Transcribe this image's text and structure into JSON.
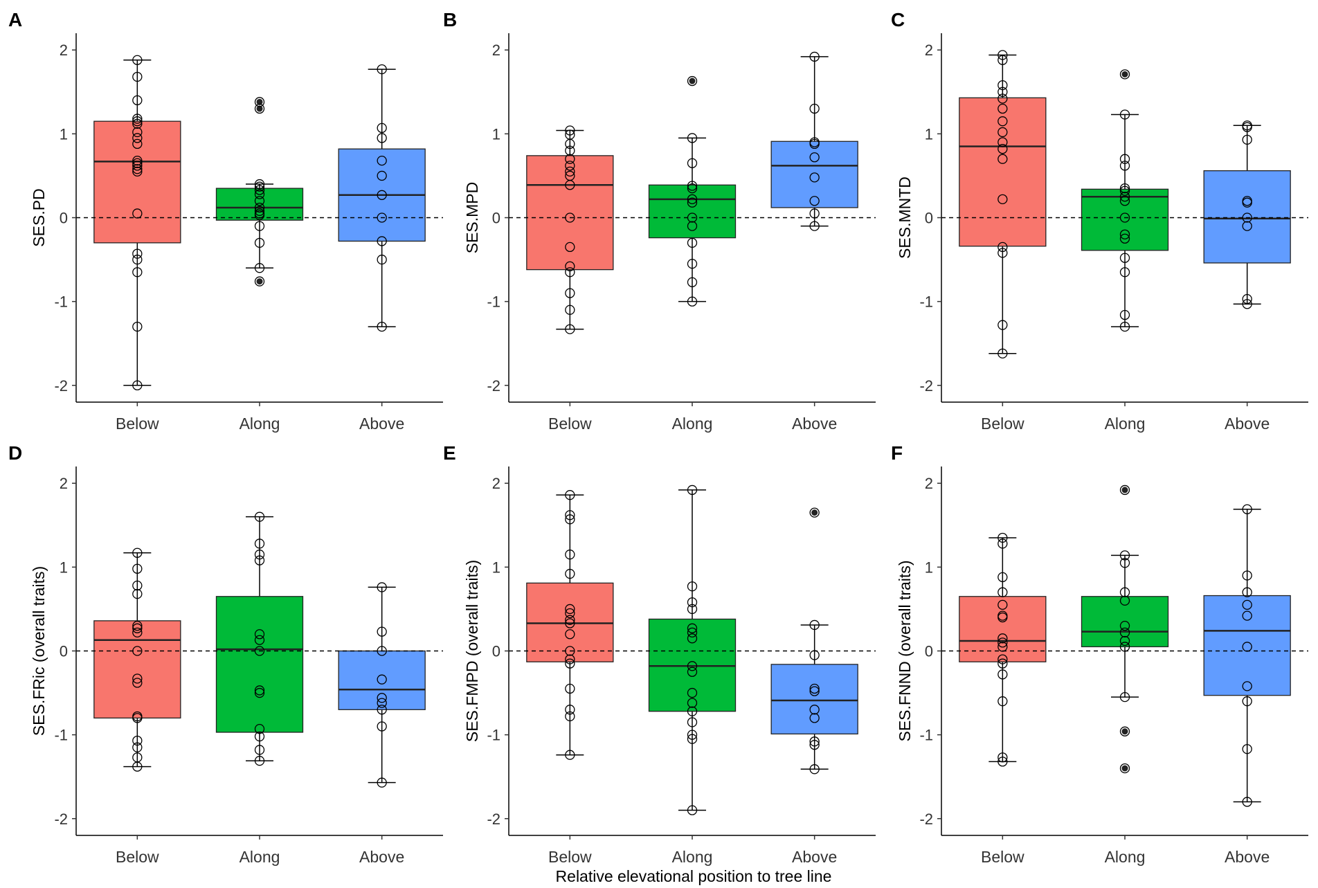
{
  "figure": {
    "xlabel": "Relative elevational position to tree line"
  },
  "colors": {
    "Below": "#F8766D",
    "Along": "#00BA38",
    "Above": "#619CFF"
  },
  "chart_data": [
    {
      "type": "boxplot",
      "panel": "A",
      "ylabel": "SES.PD",
      "ylim": [
        -2.2,
        2.2
      ],
      "yticks": [
        -2,
        -1,
        0,
        1,
        2
      ],
      "reference_line": 0,
      "categories": [
        "Below",
        "Along",
        "Above"
      ],
      "boxes": [
        {
          "category": "Below",
          "whisker_low": -2.0,
          "q1": -0.3,
          "median": 0.67,
          "q3": 1.15,
          "whisker_high": 1.88,
          "points": [
            1.88,
            1.68,
            1.4,
            1.18,
            1.15,
            1.12,
            1.02,
            0.95,
            0.88,
            0.68,
            0.65,
            0.62,
            0.58,
            0.55,
            0.05,
            -0.43,
            -0.5,
            -0.65,
            -1.3,
            -2.0
          ],
          "outliers": []
        },
        {
          "category": "Along",
          "whisker_low": -0.6,
          "q1": -0.03,
          "median": 0.12,
          "q3": 0.35,
          "whisker_high": 0.4,
          "points": [
            0.4,
            0.37,
            0.33,
            0.28,
            0.2,
            0.12,
            0.08,
            0.05,
            0.03,
            -0.1,
            -0.3,
            -0.6
          ],
          "outliers": [
            1.38,
            1.3,
            -0.76
          ]
        },
        {
          "category": "Above",
          "whisker_low": -1.3,
          "q1": -0.28,
          "median": 0.27,
          "q3": 0.82,
          "whisker_high": 1.77,
          "points": [
            1.77,
            1.07,
            0.95,
            0.68,
            0.5,
            0.27,
            0.0,
            -0.28,
            -0.5,
            -1.3
          ],
          "outliers": []
        }
      ]
    },
    {
      "type": "boxplot",
      "panel": "B",
      "ylabel": "SES.MPD",
      "ylim": [
        -2.2,
        2.2
      ],
      "yticks": [
        -2,
        -1,
        0,
        1,
        2
      ],
      "reference_line": 0,
      "categories": [
        "Below",
        "Along",
        "Above"
      ],
      "boxes": [
        {
          "category": "Below",
          "whisker_low": -1.33,
          "q1": -0.62,
          "median": 0.39,
          "q3": 0.74,
          "whisker_high": 1.04,
          "points": [
            1.04,
            0.99,
            0.88,
            0.8,
            0.7,
            0.62,
            0.55,
            0.5,
            0.39,
            0.0,
            -0.35,
            -0.58,
            -0.65,
            -0.9,
            -1.1,
            -1.33
          ],
          "outliers": []
        },
        {
          "category": "Along",
          "whisker_low": -1.0,
          "q1": -0.24,
          "median": 0.22,
          "q3": 0.39,
          "whisker_high": 0.95,
          "points": [
            0.95,
            0.65,
            0.38,
            0.35,
            0.22,
            0.18,
            0.0,
            -0.1,
            -0.3,
            -0.55,
            -0.77,
            -1.0
          ],
          "outliers": [
            1.63
          ]
        },
        {
          "category": "Above",
          "whisker_low": -0.1,
          "q1": 0.12,
          "median": 0.62,
          "q3": 0.91,
          "whisker_high": 1.92,
          "points": [
            1.92,
            1.3,
            0.9,
            0.88,
            0.72,
            0.48,
            0.2,
            0.05,
            -0.1
          ],
          "outliers": []
        }
      ]
    },
    {
      "type": "boxplot",
      "panel": "C",
      "ylabel": "SES.MNTD",
      "ylim": [
        -2.2,
        2.2
      ],
      "yticks": [
        -2,
        -1,
        0,
        1,
        2
      ],
      "reference_line": 0,
      "categories": [
        "Below",
        "Along",
        "Above"
      ],
      "boxes": [
        {
          "category": "Below",
          "whisker_low": -1.62,
          "q1": -0.34,
          "median": 0.85,
          "q3": 1.43,
          "whisker_high": 1.94,
          "points": [
            1.94,
            1.88,
            1.58,
            1.5,
            1.42,
            1.3,
            1.15,
            1.02,
            0.9,
            0.82,
            0.7,
            0.22,
            -0.35,
            -0.42,
            -1.28,
            -1.62
          ],
          "outliers": []
        },
        {
          "category": "Along",
          "whisker_low": -1.3,
          "q1": -0.39,
          "median": 0.25,
          "q3": 0.34,
          "whisker_high": 1.23,
          "points": [
            1.23,
            0.7,
            0.62,
            0.35,
            0.32,
            0.25,
            0.2,
            0.0,
            -0.2,
            -0.25,
            -0.48,
            -0.65,
            -1.16,
            -1.3
          ],
          "outliers": [
            1.71
          ]
        },
        {
          "category": "Above",
          "whisker_low": -1.03,
          "q1": -0.54,
          "median": -0.01,
          "q3": 0.56,
          "whisker_high": 1.1,
          "points": [
            1.1,
            1.08,
            0.93,
            0.2,
            0.18,
            0.0,
            -0.1,
            -0.97,
            -1.03
          ],
          "outliers": []
        }
      ]
    },
    {
      "type": "boxplot",
      "panel": "D",
      "ylabel": "SES.FRic (overall traits)",
      "ylim": [
        -2.2,
        2.2
      ],
      "yticks": [
        -2,
        -1,
        0,
        1,
        2
      ],
      "reference_line": 0,
      "categories": [
        "Below",
        "Along",
        "Above"
      ],
      "boxes": [
        {
          "category": "Below",
          "whisker_low": -1.38,
          "q1": -0.8,
          "median": 0.13,
          "q3": 0.36,
          "whisker_high": 1.17,
          "points": [
            1.17,
            0.98,
            0.78,
            0.68,
            0.3,
            0.27,
            0.22,
            0.0,
            -0.33,
            -0.38,
            -0.78,
            -0.8,
            -1.07,
            -1.15,
            -1.27,
            -1.38
          ],
          "outliers": []
        },
        {
          "category": "Along",
          "whisker_low": -1.31,
          "q1": -0.97,
          "median": 0.02,
          "q3": 0.65,
          "whisker_high": 1.6,
          "points": [
            1.6,
            1.28,
            1.15,
            1.08,
            0.2,
            0.13,
            0.0,
            -0.47,
            -0.5,
            -0.93,
            -1.02,
            -1.18,
            -1.31
          ],
          "outliers": []
        },
        {
          "category": "Above",
          "whisker_low": -1.57,
          "q1": -0.7,
          "median": -0.46,
          "q3": 0.0,
          "whisker_high": 0.76,
          "points": [
            0.76,
            0.23,
            0.0,
            -0.34,
            -0.56,
            -0.62,
            -0.7,
            -0.9,
            -1.57
          ],
          "outliers": []
        }
      ]
    },
    {
      "type": "boxplot",
      "panel": "E",
      "ylabel": "SES.FMPD (overall traits)",
      "ylim": [
        -2.2,
        2.2
      ],
      "yticks": [
        -2,
        -1,
        0,
        1,
        2
      ],
      "reference_line": 0,
      "categories": [
        "Below",
        "Along",
        "Above"
      ],
      "boxes": [
        {
          "category": "Below",
          "whisker_low": -1.24,
          "q1": -0.13,
          "median": 0.33,
          "q3": 0.81,
          "whisker_high": 1.86,
          "points": [
            1.86,
            1.62,
            1.57,
            1.15,
            0.92,
            0.5,
            0.45,
            0.37,
            0.33,
            0.2,
            0.0,
            -0.1,
            -0.15,
            -0.45,
            -0.7,
            -0.78,
            -1.24
          ],
          "outliers": []
        },
        {
          "category": "Along",
          "whisker_low": -1.9,
          "q1": -0.72,
          "median": -0.18,
          "q3": 0.38,
          "whisker_high": 1.92,
          "points": [
            1.92,
            0.77,
            0.58,
            0.5,
            0.27,
            0.22,
            0.15,
            -0.18,
            -0.25,
            -0.5,
            -0.62,
            -0.72,
            -0.85,
            -1.0,
            -1.05,
            -1.9
          ],
          "outliers": []
        },
        {
          "category": "Above",
          "whisker_low": -1.41,
          "q1": -0.99,
          "median": -0.59,
          "q3": -0.16,
          "whisker_high": 0.31,
          "points": [
            0.31,
            -0.05,
            -0.45,
            -0.48,
            -0.7,
            -0.8,
            -1.08,
            -1.12,
            -1.41
          ],
          "outliers": [
            1.65
          ]
        }
      ]
    },
    {
      "type": "boxplot",
      "panel": "F",
      "ylabel": "SES.FNND (overall traits)",
      "ylim": [
        -2.2,
        2.2
      ],
      "yticks": [
        -2,
        -1,
        0,
        1,
        2
      ],
      "reference_line": 0,
      "categories": [
        "Below",
        "Along",
        "Above"
      ],
      "boxes": [
        {
          "category": "Below",
          "whisker_low": -1.32,
          "q1": -0.13,
          "median": 0.12,
          "q3": 0.65,
          "whisker_high": 1.35,
          "points": [
            1.35,
            1.28,
            0.88,
            0.7,
            0.55,
            0.42,
            0.4,
            0.15,
            0.1,
            0.05,
            -0.1,
            -0.15,
            -0.28,
            -0.6,
            -1.27,
            -1.32
          ],
          "outliers": []
        },
        {
          "category": "Along",
          "whisker_low": -0.55,
          "q1": 0.05,
          "median": 0.23,
          "q3": 0.65,
          "whisker_high": 1.14,
          "points": [
            1.14,
            1.05,
            0.7,
            0.6,
            0.3,
            0.22,
            0.12,
            0.05,
            -0.55
          ],
          "outliers": [
            1.92,
            -0.96,
            -1.4
          ]
        },
        {
          "category": "Above",
          "whisker_low": -1.8,
          "q1": -0.53,
          "median": 0.24,
          "q3": 0.66,
          "whisker_high": 1.69,
          "points": [
            1.69,
            0.9,
            0.7,
            0.55,
            0.42,
            0.05,
            -0.42,
            -0.6,
            -1.17,
            -1.8
          ],
          "outliers": []
        }
      ]
    }
  ]
}
